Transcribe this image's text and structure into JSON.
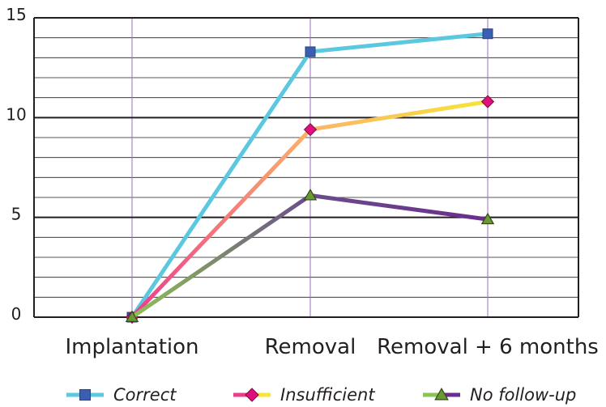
{
  "chart_data": {
    "type": "line",
    "categories": [
      "Implantation",
      "Removal",
      "Removal + 6 months"
    ],
    "ylim": [
      0,
      15
    ],
    "yticks": [
      "0",
      "5",
      "10",
      "15"
    ],
    "grid": true,
    "legend_position": "bottom",
    "series": [
      {
        "name": "Correct",
        "values": [
          0,
          13.3,
          14.2
        ],
        "colors": [
          "#5bc8e0",
          "#5bc8e0"
        ],
        "marker": "square",
        "marker_color": "#3a5fb0"
      },
      {
        "name": "Insufficient",
        "values": [
          0,
          9.4,
          10.8
        ],
        "colors": [
          "#ec3d8c",
          "#fbb36a",
          "#f5e637"
        ],
        "marker": "diamond",
        "marker_color": "#e0107a"
      },
      {
        "name": "No follow-up",
        "values": [
          0,
          6.1,
          4.9
        ],
        "colors": [
          "#8dc255",
          "#6b4c8a",
          "#6b2d8f"
        ],
        "marker": "triangle",
        "marker_color": "#6a9a35"
      }
    ]
  }
}
